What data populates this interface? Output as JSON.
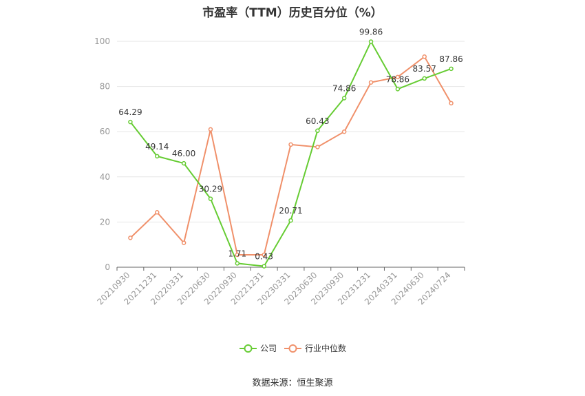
{
  "chart_data": {
    "type": "line",
    "title": "市盈率（TTM）历史百分位（%）",
    "xlabel": "",
    "ylabel": "",
    "ylim": [
      0,
      100
    ],
    "yticks": [
      0,
      20,
      40,
      60,
      80,
      100
    ],
    "grid": true,
    "legend_position": "bottom",
    "categories": [
      "20210930",
      "20211231",
      "20220331",
      "20220630",
      "20220930",
      "20221231",
      "20230331",
      "20230630",
      "20230930",
      "20231231",
      "20240331",
      "20240630",
      "20240724"
    ],
    "series": [
      {
        "name": "公司",
        "color": "#66cc33",
        "values": [
          64.29,
          49.14,
          46.0,
          30.29,
          1.71,
          0.43,
          20.71,
          60.43,
          74.86,
          99.86,
          78.86,
          83.57,
          87.86
        ],
        "labels": [
          "64.29",
          "49.14",
          "46.00",
          "30.29",
          "1.71",
          "0.43",
          "20.71",
          "60.43",
          "74.86",
          "99.86",
          "78.86",
          "83.57",
          "87.86"
        ]
      },
      {
        "name": "行业中位数",
        "color": "#f0906a",
        "values": [
          13.0,
          24.3,
          10.8,
          61.0,
          5.5,
          5.5,
          54.3,
          53.2,
          60.0,
          81.8,
          84.2,
          93.2,
          72.6
        ]
      }
    ]
  },
  "source": "数据来源：恒生聚源"
}
